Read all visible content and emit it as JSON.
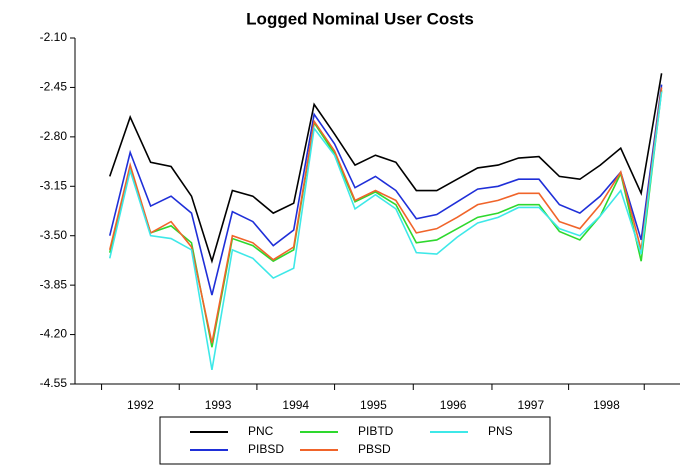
{
  "chart_data": {
    "type": "line",
    "title": "Logged Nominal User Costs",
    "x": [
      0,
      1,
      2,
      3,
      4,
      5,
      6,
      7,
      8,
      9,
      10,
      11,
      12,
      13,
      14,
      15,
      16,
      17,
      18,
      19,
      20,
      21,
      22,
      23,
      24,
      25,
      26,
      27
    ],
    "xlim": [
      -1.7,
      27.9
    ],
    "xticks": [
      {
        "value": 1.5,
        "label": "1992"
      },
      {
        "value": 5.3,
        "label": "1993"
      },
      {
        "value": 9.1,
        "label": "1994"
      },
      {
        "value": 12.9,
        "label": "1995"
      },
      {
        "value": 16.8,
        "label": "1996"
      },
      {
        "value": 20.6,
        "label": "1997"
      },
      {
        "value": 24.3,
        "label": "1998"
      }
    ],
    "ylim": [
      -4.55,
      -2.1
    ],
    "yticks": [
      {
        "value": -2.1,
        "label": "-2.10"
      },
      {
        "value": -2.45,
        "label": "-2.45"
      },
      {
        "value": -2.8,
        "label": "-2.80"
      },
      {
        "value": -3.15,
        "label": "-3.15"
      },
      {
        "value": -3.5,
        "label": "-3.50"
      },
      {
        "value": -3.85,
        "label": "-3.85"
      },
      {
        "value": -4.2,
        "label": "-4.20"
      },
      {
        "value": -4.55,
        "label": "-4.55"
      }
    ],
    "grid": false,
    "legend": "bottom",
    "series": [
      {
        "name": "PNC",
        "color": "#000000",
        "values": [
          -3.08,
          -2.66,
          -2.98,
          -3.01,
          -3.22,
          -3.68,
          -3.18,
          -3.22,
          -3.34,
          -3.27,
          -2.57,
          -2.78,
          -3.0,
          -2.93,
          -2.98,
          -3.18,
          -3.18,
          -3.1,
          -3.02,
          -3.0,
          -2.95,
          -2.94,
          -3.08,
          -3.1,
          -3.0,
          -2.88,
          -3.2,
          -2.35
        ]
      },
      {
        "name": "PIBSD",
        "color": "#1f2fd8",
        "values": [
          -3.5,
          -2.91,
          -3.29,
          -3.22,
          -3.34,
          -3.92,
          -3.33,
          -3.4,
          -3.57,
          -3.46,
          -2.64,
          -2.85,
          -3.16,
          -3.08,
          -3.18,
          -3.38,
          -3.35,
          -3.26,
          -3.17,
          -3.15,
          -3.1,
          -3.1,
          -3.28,
          -3.34,
          -3.22,
          -3.05,
          -3.53,
          -2.43
        ]
      },
      {
        "name": "PIBTD",
        "color": "#2ed82e",
        "values": [
          -3.62,
          -3.02,
          -3.48,
          -3.43,
          -3.55,
          -4.29,
          -3.52,
          -3.57,
          -3.68,
          -3.6,
          -2.7,
          -2.92,
          -3.26,
          -3.19,
          -3.28,
          -3.55,
          -3.53,
          -3.45,
          -3.37,
          -3.34,
          -3.28,
          -3.28,
          -3.47,
          -3.53,
          -3.36,
          -3.06,
          -3.68,
          -2.47
        ]
      },
      {
        "name": "PBSD",
        "color": "#f0642a",
        "values": [
          -3.6,
          -3.0,
          -3.48,
          -3.4,
          -3.58,
          -4.26,
          -3.5,
          -3.55,
          -3.67,
          -3.58,
          -2.69,
          -2.9,
          -3.25,
          -3.18,
          -3.25,
          -3.48,
          -3.45,
          -3.37,
          -3.28,
          -3.25,
          -3.2,
          -3.2,
          -3.4,
          -3.45,
          -3.28,
          -3.05,
          -3.6,
          -2.45
        ]
      },
      {
        "name": "PNS",
        "color": "#3ee8e8",
        "values": [
          -3.66,
          -3.04,
          -3.5,
          -3.52,
          -3.6,
          -4.45,
          -3.6,
          -3.66,
          -3.8,
          -3.73,
          -2.74,
          -2.93,
          -3.31,
          -3.21,
          -3.31,
          -3.62,
          -3.63,
          -3.51,
          -3.41,
          -3.37,
          -3.3,
          -3.3,
          -3.45,
          -3.5,
          -3.36,
          -3.18,
          -3.63,
          -2.48
        ]
      }
    ]
  }
}
